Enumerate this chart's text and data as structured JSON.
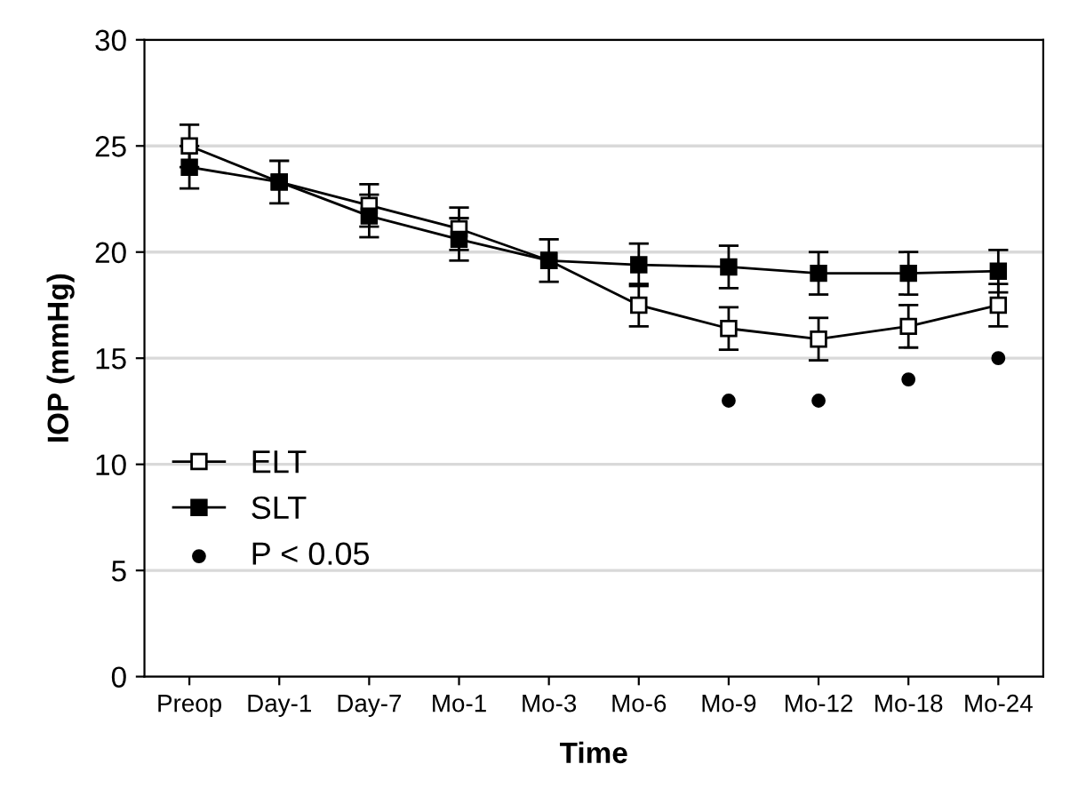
{
  "chart_data": {
    "type": "line",
    "xlabel": "Time",
    "ylabel": "IOP (mmHg)",
    "categories": [
      "Preop",
      "Day-1",
      "Day-7",
      "Mo-1",
      "Mo-3",
      "Mo-6",
      "Mo-9",
      "Mo-12",
      "Mo-18",
      "Mo-24"
    ],
    "series": [
      {
        "name": "ELT",
        "color": "#000000",
        "marker": "square",
        "values": [
          25.0,
          23.3,
          22.2,
          21.1,
          19.6,
          17.5,
          16.4,
          15.9,
          16.5,
          17.5
        ],
        "errors": [
          1,
          null,
          1,
          1,
          null,
          1,
          1,
          1,
          1,
          1
        ]
      },
      {
        "name": "SLT",
        "color": "#000000",
        "marker": "square",
        "values": [
          24.0,
          23.3,
          21.7,
          20.6,
          19.6,
          19.4,
          19.3,
          19.0,
          19.0,
          19.1
        ],
        "errors": [
          1,
          1,
          1,
          1,
          1,
          1,
          1,
          1,
          1,
          1
        ]
      },
      {
        "name": "P < 0.05",
        "type": "scatter",
        "color": "#000000",
        "marker": "circle",
        "x": [
          "Mo-9",
          "Mo-12",
          "Mo-18",
          "Mo-24"
        ],
        "values": [
          13,
          13,
          14,
          15
        ]
      }
    ],
    "ylim": [
      0,
      30
    ],
    "yticks": [
      0,
      5,
      10,
      15,
      20,
      25,
      30
    ],
    "grid": "y",
    "legend": "bottom left"
  }
}
